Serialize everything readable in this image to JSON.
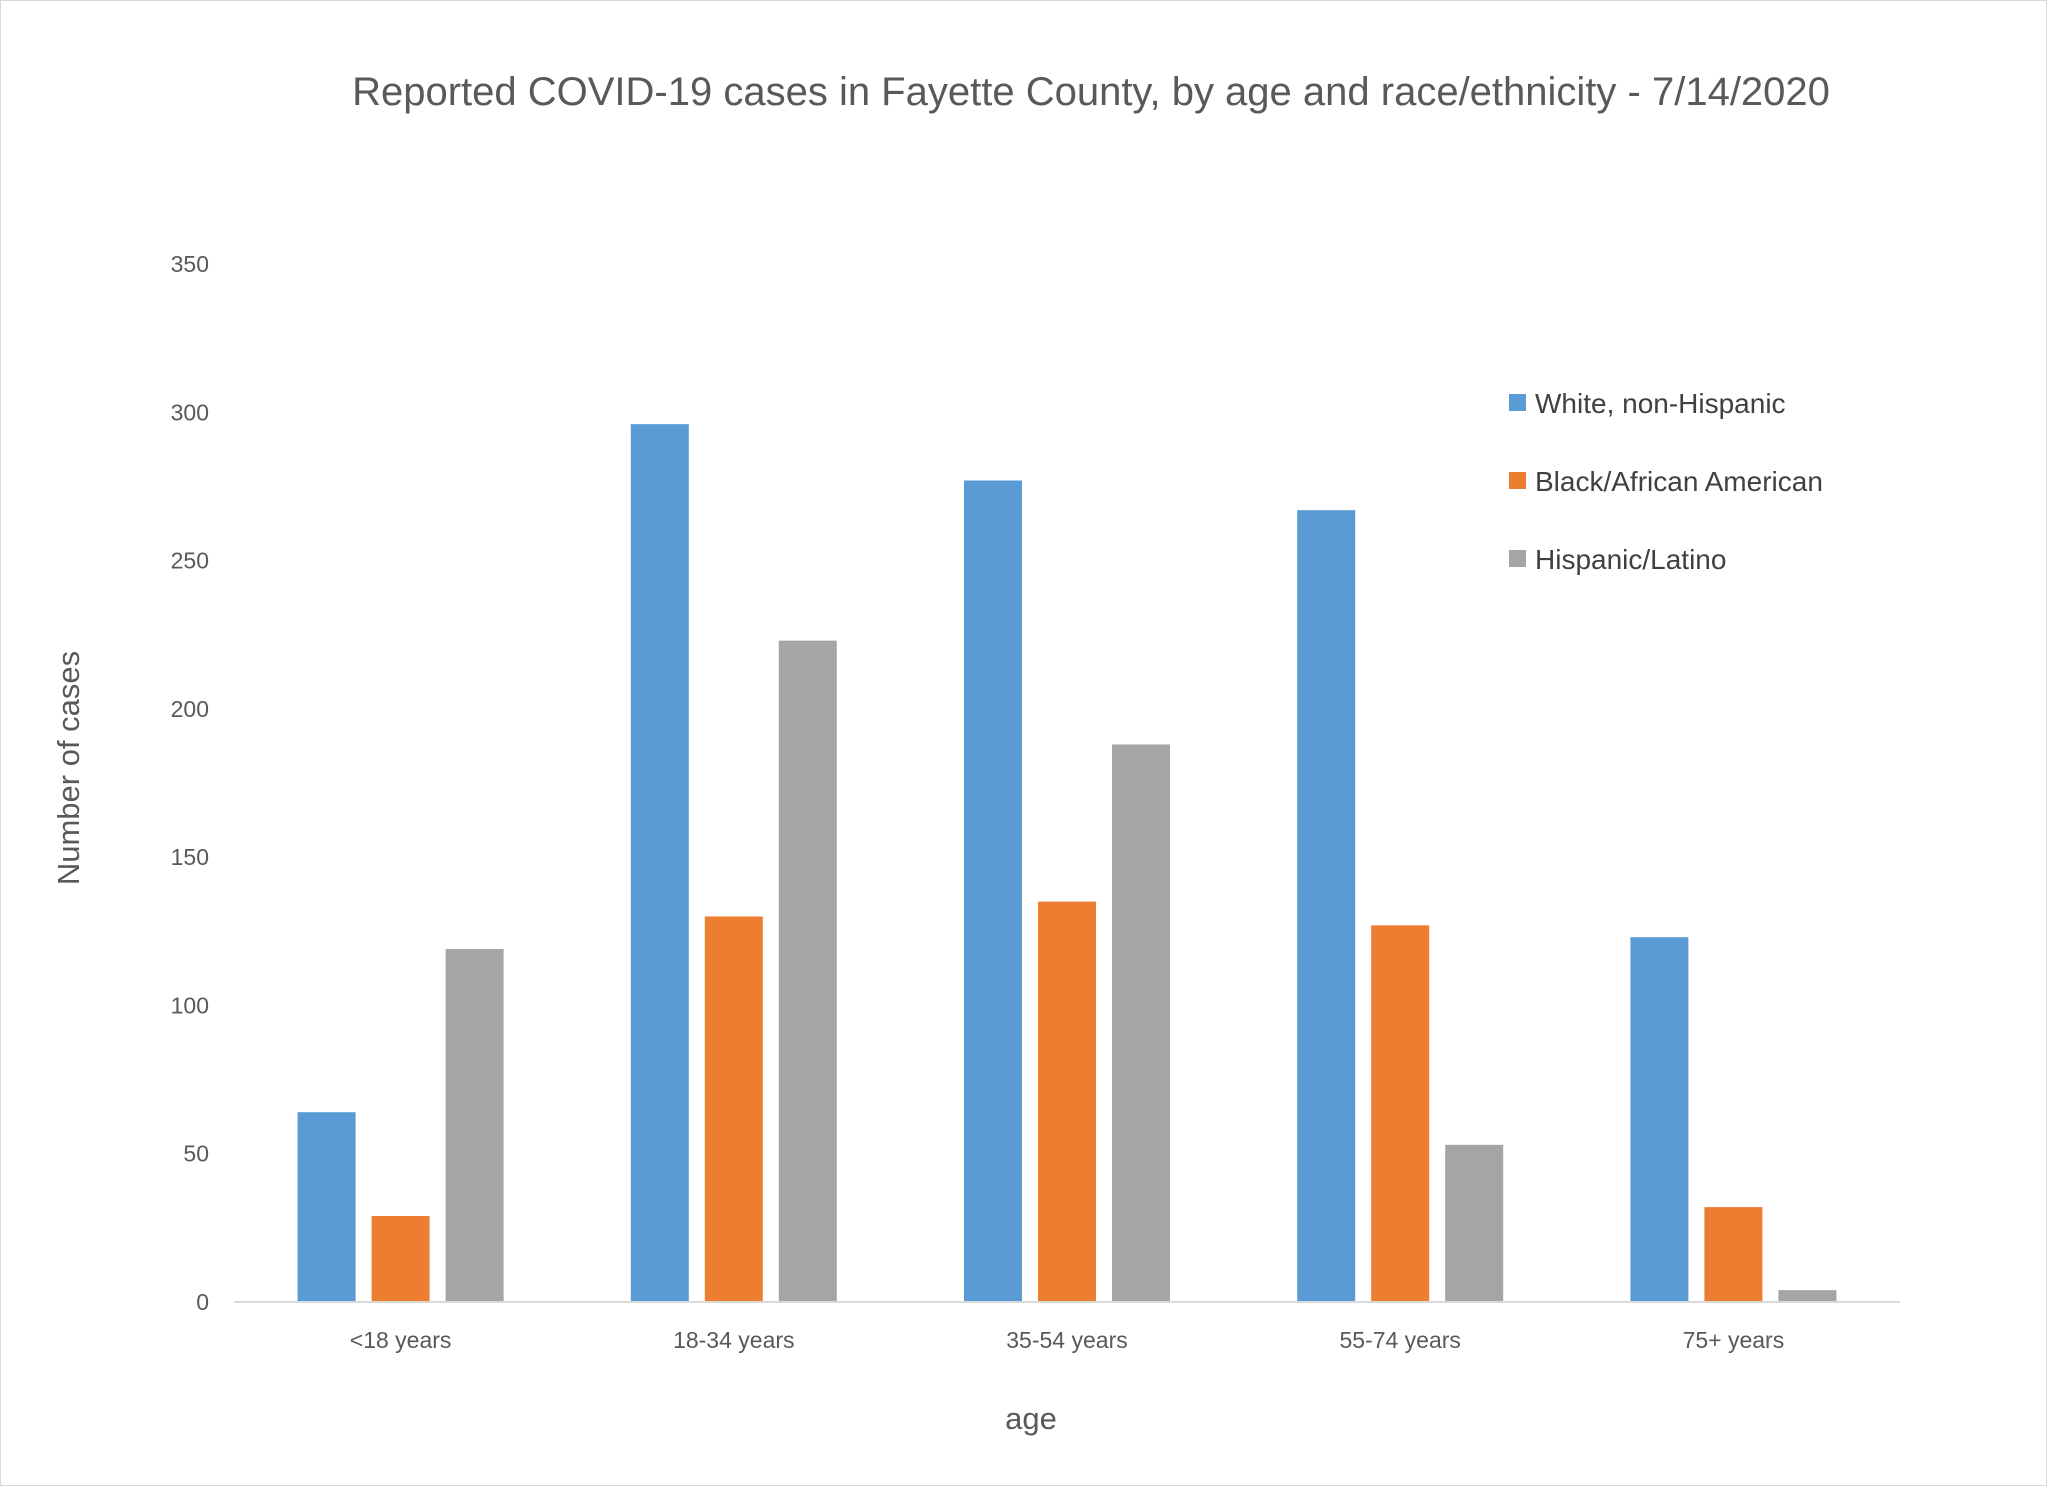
{
  "chart_data": {
    "type": "bar",
    "title": "Reported COVID-19 cases in Fayette County, by age and race/ethnicity - 7/14/2020",
    "xlabel": "age",
    "ylabel": "Number of cases",
    "categories": [
      "<18 years",
      "18-34 years",
      "35-54 years",
      "55-74 years",
      "75+ years"
    ],
    "series": [
      {
        "name": "White, non-Hispanic",
        "color": "#5b9bd5",
        "values": [
          64,
          296,
          277,
          267,
          123
        ]
      },
      {
        "name": "Black/African American",
        "color": "#ed7d31",
        "values": [
          29,
          130,
          135,
          127,
          32
        ]
      },
      {
        "name": "Hispanic/Latino",
        "color": "#a5a5a5",
        "values": [
          119,
          223,
          188,
          53,
          4
        ]
      }
    ],
    "ylim": [
      0,
      350
    ],
    "yticks": [
      "0",
      "50",
      "100",
      "150",
      "200",
      "250",
      "300",
      "350"
    ],
    "grid": false,
    "legend_position": "top-right"
  }
}
